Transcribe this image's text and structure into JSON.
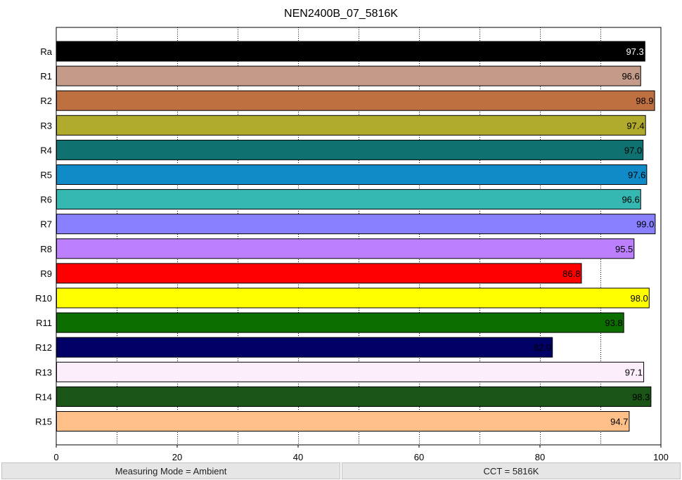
{
  "chart_data": {
    "type": "bar",
    "orientation": "horizontal",
    "title": "NEN2400B_07_5816K",
    "xlabel": "",
    "ylabel": "",
    "xlim": [
      0,
      100
    ],
    "x_ticks": [
      0,
      20,
      40,
      60,
      80,
      100
    ],
    "grid": "vertical dotted",
    "categories": [
      "Ra",
      "R1",
      "R2",
      "R3",
      "R4",
      "R5",
      "R6",
      "R7",
      "R8",
      "R9",
      "R10",
      "R11",
      "R12",
      "R13",
      "R14",
      "R15"
    ],
    "values": [
      97.3,
      96.6,
      98.9,
      97.4,
      97.0,
      97.6,
      96.6,
      99.0,
      95.5,
      86.8,
      98.0,
      93.8,
      82.0,
      97.1,
      98.3,
      94.7
    ],
    "value_labels": [
      "97.3",
      "96.6",
      "98.9",
      "97.4",
      "97.0",
      "97.6",
      "96.6",
      "99.0",
      "95.5",
      "86.8",
      "98.0",
      "93.8",
      "82.0",
      "97.1",
      "98.3",
      "94.7"
    ],
    "colors": [
      "#000000",
      "#c49a88",
      "#be7040",
      "#b0ab2c",
      "#107270",
      "#118bc8",
      "#35b8b1",
      "#8880ff",
      "#bc80ff",
      "#ff0000",
      "#ffff00",
      "#0d6e00",
      "#000066",
      "#fdeefb",
      "#1a5417",
      "#ffbf88"
    ],
    "label_colors": [
      "#ffffff",
      "#000000",
      "#000000",
      "#000000",
      "#000000",
      "#000000",
      "#000000",
      "#000000",
      "#000000",
      "#000000",
      "#000000",
      "#000000",
      "#000000",
      "#000000",
      "#000000",
      "#000000"
    ]
  },
  "footer": {
    "mode": "Measuring Mode = Ambient",
    "cct": "CCT = 5816K"
  }
}
